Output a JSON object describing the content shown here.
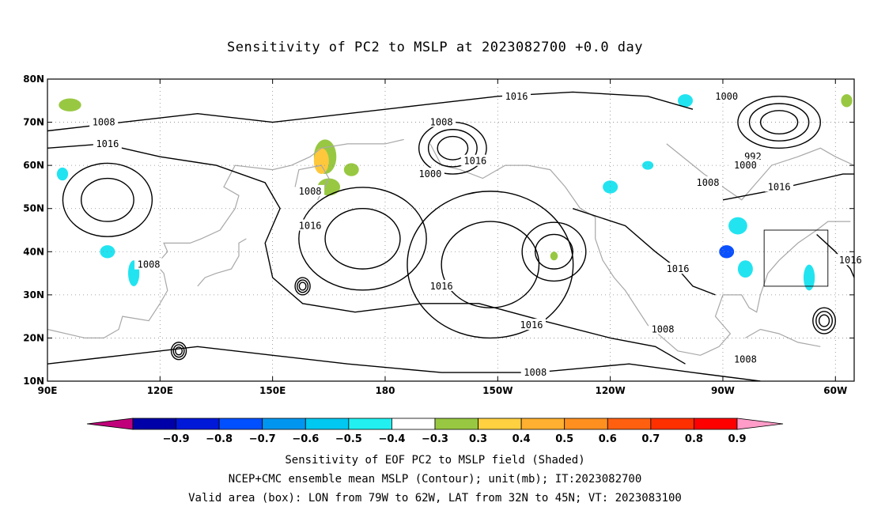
{
  "title": "Sensitivity of PC2 to MSLP at 2023082700 +0.0 day",
  "map": {
    "lon_range": [
      90,
      305
    ],
    "lat_range": [
      10,
      80
    ],
    "lon_ticks": [
      {
        "lon": 90,
        "label": "90E"
      },
      {
        "lon": 120,
        "label": "120E"
      },
      {
        "lon": 150,
        "label": "150E"
      },
      {
        "lon": 180,
        "label": "180"
      },
      {
        "lon": 210,
        "label": "150W"
      },
      {
        "lon": 240,
        "label": "120W"
      },
      {
        "lon": 270,
        "label": "90W"
      },
      {
        "lon": 300,
        "label": "60W"
      }
    ],
    "lat_ticks": [
      {
        "lat": 10,
        "label": "10N"
      },
      {
        "lat": 20,
        "label": "20N"
      },
      {
        "lat": 30,
        "label": "30N"
      },
      {
        "lat": 40,
        "label": "40N"
      },
      {
        "lat": 50,
        "label": "50N"
      },
      {
        "lat": 60,
        "label": "60N"
      },
      {
        "lat": 70,
        "label": "70N"
      },
      {
        "lat": 80,
        "label": "80N"
      }
    ],
    "grid": true,
    "valid_box": {
      "lon_min": 281,
      "lon_max": 298,
      "lat_min": 32,
      "lat_max": 45
    },
    "contour_labels": [
      {
        "text": "1016",
        "lon": 215,
        "lat": 76
      },
      {
        "text": "1000",
        "lon": 271,
        "lat": 76
      },
      {
        "text": "1008",
        "lon": 105,
        "lat": 70
      },
      {
        "text": "1008",
        "lon": 195,
        "lat": 70
      },
      {
        "text": "1016",
        "lon": 106,
        "lat": 65
      },
      {
        "text": "992",
        "lon": 278,
        "lat": 62
      },
      {
        "text": "1016",
        "lon": 204,
        "lat": 61
      },
      {
        "text": "1000",
        "lon": 276,
        "lat": 60
      },
      {
        "text": "1000",
        "lon": 192,
        "lat": 58
      },
      {
        "text": "1008",
        "lon": 266,
        "lat": 56
      },
      {
        "text": "1016",
        "lon": 285,
        "lat": 55
      },
      {
        "text": "1008",
        "lon": 160,
        "lat": 54
      },
      {
        "text": "1016",
        "lon": 160,
        "lat": 46
      },
      {
        "text": "1008",
        "lon": 117,
        "lat": 37
      },
      {
        "text": "1016",
        "lon": 304,
        "lat": 38
      },
      {
        "text": "1016",
        "lon": 258,
        "lat": 36
      },
      {
        "text": "1016",
        "lon": 195,
        "lat": 32
      },
      {
        "text": "1016",
        "lon": 219,
        "lat": 23
      },
      {
        "text": "1008",
        "lon": 254,
        "lat": 22
      },
      {
        "text": "1008",
        "lon": 276,
        "lat": 15
      },
      {
        "text": "1008",
        "lon": 220,
        "lat": 12
      }
    ],
    "highs": [
      {
        "lon": 174,
        "lat": 43,
        "rx": 10,
        "ry": 7
      },
      {
        "lon": 208,
        "lat": 37,
        "rx": 13,
        "ry": 10
      },
      {
        "lon": 225,
        "lat": 40,
        "rx": 5,
        "ry": 4
      },
      {
        "lon": 106,
        "lat": 52,
        "rx": 7,
        "ry": 5
      }
    ],
    "lows": [
      {
        "lon": 198,
        "lat": 64,
        "rx": 9,
        "ry": 6
      },
      {
        "lon": 285,
        "lat": 70,
        "rx": 11,
        "ry": 6
      },
      {
        "lon": 297,
        "lat": 24,
        "rx": 3,
        "ry": 3
      },
      {
        "lon": 158,
        "lat": 32,
        "rx": 2,
        "ry": 2
      },
      {
        "lon": 125,
        "lat": 17,
        "rx": 2,
        "ry": 2
      }
    ],
    "shaded_patches": [
      {
        "lon": 164,
        "lat": 62,
        "rx": 3,
        "ry": 4,
        "color": "#98c842"
      },
      {
        "lon": 163,
        "lat": 61,
        "rx": 2,
        "ry": 3,
        "color": "#ffc83c"
      },
      {
        "lon": 165,
        "lat": 55,
        "rx": 3,
        "ry": 2,
        "color": "#98c842"
      },
      {
        "lon": 171,
        "lat": 59,
        "rx": 2,
        "ry": 1.5,
        "color": "#98c842"
      },
      {
        "lon": 96,
        "lat": 74,
        "rx": 3,
        "ry": 1.5,
        "color": "#98c842"
      },
      {
        "lon": 303,
        "lat": 75,
        "rx": 1.5,
        "ry": 1.5,
        "color": "#98c842"
      },
      {
        "lon": 225,
        "lat": 39,
        "rx": 1,
        "ry": 1,
        "color": "#98c842"
      },
      {
        "lon": 271,
        "lat": 40,
        "rx": 2,
        "ry": 1.5,
        "color": "#0a50ff"
      },
      {
        "lon": 274,
        "lat": 46,
        "rx": 2.5,
        "ry": 2,
        "color": "#22e4f0"
      },
      {
        "lon": 276,
        "lat": 36,
        "rx": 2,
        "ry": 2,
        "color": "#22e4f0"
      },
      {
        "lon": 240,
        "lat": 55,
        "rx": 2,
        "ry": 1.5,
        "color": "#22e4f0"
      },
      {
        "lon": 260,
        "lat": 75,
        "rx": 2,
        "ry": 1.5,
        "color": "#22e4f0"
      },
      {
        "lon": 293,
        "lat": 34,
        "rx": 1.5,
        "ry": 3,
        "color": "#22e4f0"
      },
      {
        "lon": 113,
        "lat": 35,
        "rx": 1.5,
        "ry": 3,
        "color": "#22e4f0"
      },
      {
        "lon": 94,
        "lat": 58,
        "rx": 1.5,
        "ry": 1.5,
        "color": "#22e4f0"
      },
      {
        "lon": 106,
        "lat": 40,
        "rx": 2,
        "ry": 1.5,
        "color": "#22e4f0"
      },
      {
        "lon": 250,
        "lat": 60,
        "rx": 1.5,
        "ry": 1,
        "color": "#22e4f0"
      }
    ],
    "coastlines": [
      [
        [
          90,
          22
        ],
        [
          100,
          20
        ],
        [
          105,
          20
        ],
        [
          109,
          22
        ],
        [
          110,
          25
        ],
        [
          117,
          24
        ],
        [
          120,
          28
        ],
        [
          122,
          31
        ],
        [
          121,
          35
        ],
        [
          119,
          37
        ],
        [
          122,
          40
        ],
        [
          121,
          42
        ],
        [
          128,
          42
        ],
        [
          131,
          43
        ],
        [
          136,
          45
        ],
        [
          140,
          50
        ],
        [
          141,
          53
        ],
        [
          137,
          55
        ],
        [
          140,
          60
        ],
        [
          150,
          59
        ],
        [
          155,
          60
        ],
        [
          160,
          62
        ],
        [
          163,
          64
        ],
        [
          170,
          65
        ],
        [
          180,
          65
        ],
        [
          185,
          66
        ]
      ],
      [
        [
          130,
          32
        ],
        [
          132,
          34
        ],
        [
          135,
          35
        ],
        [
          139,
          36
        ],
        [
          141,
          39
        ],
        [
          141,
          42
        ],
        [
          143,
          43
        ]
      ],
      [
        [
          162,
          52
        ],
        [
          165,
          57
        ],
        [
          163,
          60
        ],
        [
          157,
          59
        ],
        [
          156,
          55
        ]
      ],
      [
        [
          192,
          65
        ],
        [
          195,
          60
        ],
        [
          200,
          59
        ],
        [
          206,
          57
        ],
        [
          212,
          60
        ],
        [
          218,
          60
        ],
        [
          224,
          59
        ],
        [
          228,
          55
        ],
        [
          232,
          50
        ],
        [
          236,
          48
        ],
        [
          236,
          43
        ],
        [
          238,
          38
        ],
        [
          241,
          34
        ],
        [
          244,
          31
        ],
        [
          250,
          23
        ],
        [
          254,
          20
        ],
        [
          258,
          17
        ],
        [
          264,
          16
        ],
        [
          269,
          18
        ],
        [
          272,
          21
        ],
        [
          268,
          25
        ],
        [
          270,
          30
        ],
        [
          275,
          30
        ],
        [
          277,
          27
        ],
        [
          279,
          26
        ],
        [
          280,
          30
        ],
        [
          282,
          35
        ],
        [
          285,
          38
        ],
        [
          290,
          42
        ],
        [
          295,
          45
        ],
        [
          298,
          47
        ],
        [
          304,
          47
        ]
      ],
      [
        [
          255,
          65
        ],
        [
          265,
          58
        ],
        [
          270,
          55
        ],
        [
          275,
          52
        ],
        [
          278,
          55
        ],
        [
          283,
          60
        ],
        [
          290,
          62
        ],
        [
          296,
          64
        ],
        [
          300,
          62
        ],
        [
          305,
          60
        ]
      ],
      [
        [
          276,
          20
        ],
        [
          280,
          22
        ],
        [
          285,
          21
        ],
        [
          290,
          19
        ],
        [
          296,
          18
        ]
      ]
    ]
  },
  "colorbar": {
    "colors": [
      "#c0007a",
      "#0000a8",
      "#0018d8",
      "#0050ff",
      "#0096f0",
      "#00c8f0",
      "#22f0f0",
      "#ffffff",
      "#98c842",
      "#ffd040",
      "#ffb030",
      "#ff9020",
      "#ff6010",
      "#ff3000",
      "#ff0000",
      "#ff9cc8"
    ],
    "labels": [
      "−0.9",
      "−0.8",
      "−0.7",
      "−0.6",
      "−0.5",
      "−0.4",
      "−0.3",
      "0.3",
      "0.4",
      "0.5",
      "0.6",
      "0.7",
      "0.8",
      "0.9"
    ]
  },
  "footer": {
    "line1": "Sensitivity of EOF PC2 to MSLP field (Shaded)",
    "line2": "NCEP+CMC ensemble mean MSLP (Contour); unit(mb); IT:2023082700",
    "line3": "Valid area (box): LON from 79W to 62W, LAT from 32N to 45N; VT: 2023083100"
  }
}
